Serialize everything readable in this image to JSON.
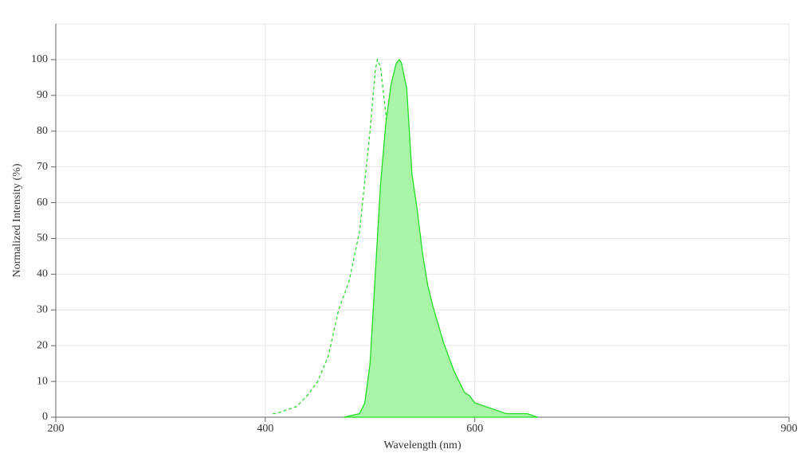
{
  "chart_data": {
    "type": "line",
    "xlabel": "Wavelength (nm)",
    "ylabel": "Normalized Intensity (%)",
    "xlim": [
      200,
      900
    ],
    "xticks": [
      200,
      400,
      600,
      900
    ],
    "ylim": [
      0,
      110
    ],
    "yticks": [
      0,
      10,
      20,
      30,
      40,
      50,
      60,
      70,
      80,
      90,
      100
    ],
    "grid": true,
    "series": [
      {
        "color": "#33dd33",
        "dashed": true,
        "filled": false,
        "x": [
          407,
          410,
          420,
          430,
          440,
          450,
          460,
          470,
          480,
          490,
          500,
          505,
          507,
          510,
          515,
          520,
          525,
          530,
          535,
          540,
          550,
          555
        ],
        "values": [
          1,
          1,
          2,
          3,
          6,
          10,
          17,
          30,
          38,
          52,
          80,
          97,
          100,
          98,
          85,
          50,
          30,
          14,
          5,
          2,
          1,
          0
        ]
      },
      {
        "color": "#22dd22",
        "dashed": false,
        "filled": true,
        "fill": "#a8f5a8",
        "x": [
          475,
          490,
          495,
          500,
          505,
          510,
          515,
          520,
          525,
          528,
          530,
          535,
          540,
          545,
          550,
          555,
          560,
          565,
          570,
          575,
          580,
          585,
          590,
          595,
          600,
          610,
          620,
          630,
          650,
          660
        ],
        "values": [
          0,
          1,
          4,
          15,
          40,
          65,
          82,
          93,
          99,
          100,
          99,
          92,
          68,
          58,
          46,
          37,
          31,
          26,
          21,
          17,
          13,
          10,
          7,
          6,
          4,
          3,
          2,
          1,
          1,
          0
        ]
      }
    ]
  }
}
